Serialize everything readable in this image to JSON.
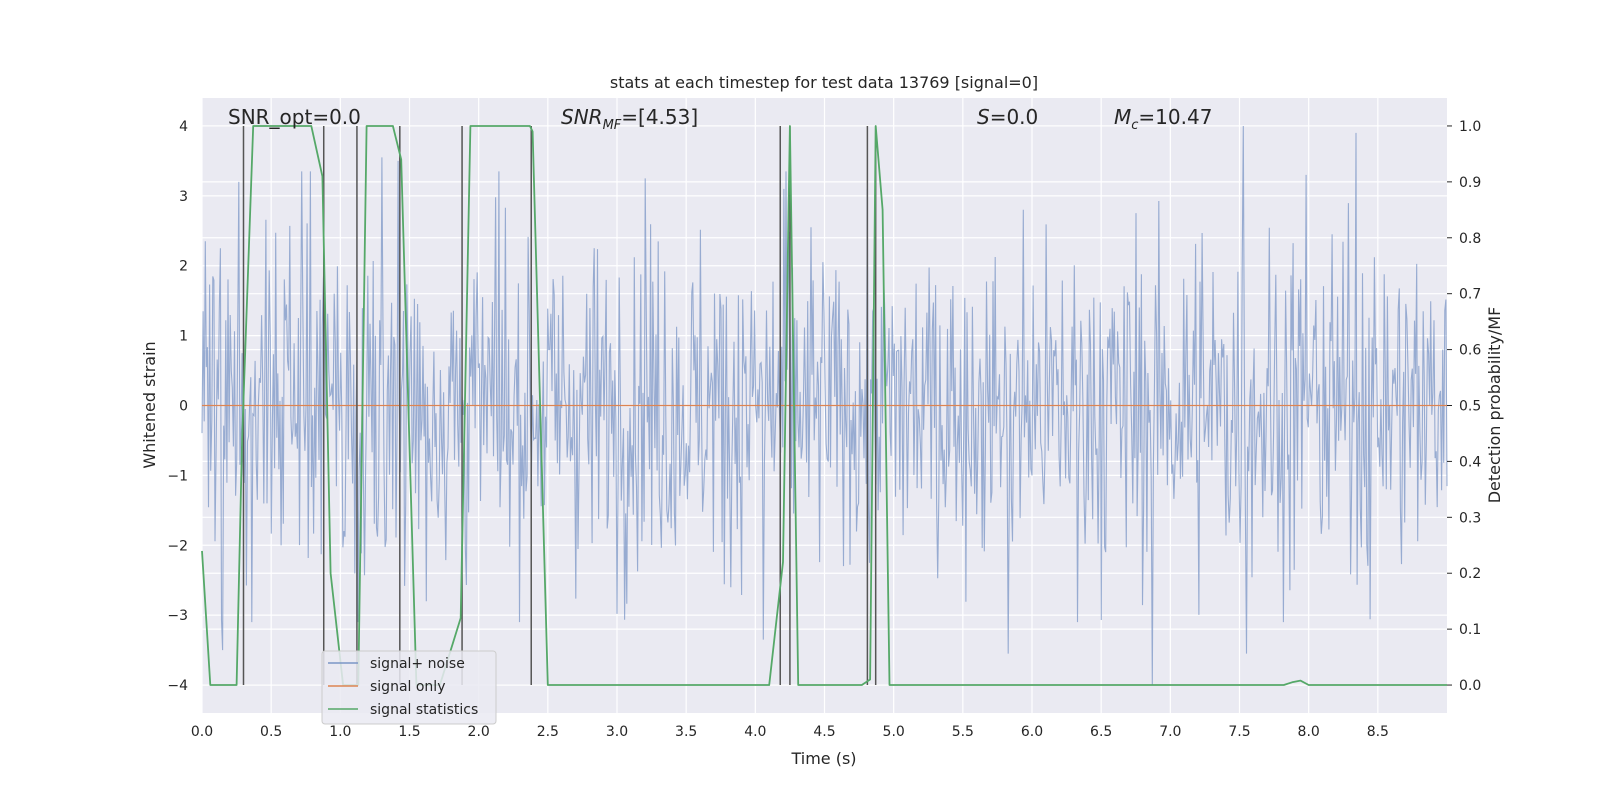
{
  "chart_data": {
    "type": "line",
    "title": "stats at each timestep for test data 13769 [signal=0]",
    "xlabel": "Time (s)",
    "ylabel_left": "Whitened strain",
    "ylabel_right": "Detection probability/MF",
    "xlim": [
      0.0,
      9.0
    ],
    "ylim_left": [
      -4.4,
      4.4
    ],
    "ylim_right": [
      -0.05,
      1.05
    ],
    "xticks": [
      "0.0",
      "0.5",
      "1.0",
      "1.5",
      "2.0",
      "2.5",
      "3.0",
      "3.5",
      "4.0",
      "4.5",
      "5.0",
      "5.5",
      "6.0",
      "6.5",
      "7.0",
      "7.5",
      "8.0",
      "8.5"
    ],
    "yticks_left": [
      "−4",
      "−3",
      "−2",
      "−1",
      "0",
      "1",
      "2",
      "3",
      "4"
    ],
    "yticks_right": [
      "0.0",
      "0.1",
      "0.2",
      "0.3",
      "0.4",
      "0.5",
      "0.6",
      "0.7",
      "0.8",
      "0.9",
      "1.0"
    ],
    "grid": true,
    "annotations": {
      "snr_opt": "SNR_opt=0.0",
      "snr_mf_sym": "SNR",
      "snr_mf_sub": "MF",
      "snr_mf_val": "=[4.53]",
      "s_sym": "S",
      "s_val": "=0.0",
      "mc_sym": "M",
      "mc_sub": "c",
      "mc_val": "=10.47"
    },
    "legend": {
      "position": "lower-left",
      "entries": [
        "signal+ noise",
        "signal only",
        "signal statistics"
      ]
    },
    "series": [
      {
        "name": "signal+ noise",
        "axis": "left",
        "color": "#7b96c6",
        "kind": "noise",
        "seed": 13769,
        "n_points": 1150,
        "sigma": 1.15,
        "spikes": [
          {
            "x": 0.27,
            "y": 3.2
          },
          {
            "x": 0.72,
            "y": 3.35
          },
          {
            "x": 0.78,
            "y": 3.35
          },
          {
            "x": 1.3,
            "y": 3.55
          },
          {
            "x": 1.42,
            "y": 3.5
          },
          {
            "x": 2.15,
            "y": 3.35
          },
          {
            "x": 3.2,
            "y": 3.25
          },
          {
            "x": 4.22,
            "y": 3.35
          },
          {
            "x": 7.53,
            "y": 4.0
          },
          {
            "x": 8.34,
            "y": 3.9
          },
          {
            "x": 7.98,
            "y": 3.3
          },
          {
            "x": 6.87,
            "y": -4.0
          },
          {
            "x": 7.55,
            "y": -3.55
          },
          {
            "x": 5.83,
            "y": -3.55
          },
          {
            "x": 4.06,
            "y": -3.35
          },
          {
            "x": 0.15,
            "y": -3.5
          },
          {
            "x": 6.33,
            "y": -3.1
          },
          {
            "x": 1.62,
            "y": -2.8
          }
        ]
      },
      {
        "name": "signal only",
        "axis": "left",
        "color": "#dd8452",
        "x": [
          0.0,
          9.0
        ],
        "values": [
          0.0,
          0.0
        ]
      },
      {
        "name": "signal statistics",
        "axis": "right",
        "color": "#55a868",
        "x": [
          0.0,
          0.06,
          0.25,
          0.29,
          0.37,
          0.42,
          0.79,
          0.87,
          0.93,
          1.02,
          1.13,
          1.19,
          1.38,
          1.44,
          1.55,
          1.72,
          1.87,
          1.94,
          2.37,
          2.39,
          2.5,
          2.56,
          4.1,
          4.2,
          4.25,
          4.31,
          4.35,
          4.77,
          4.83,
          4.87,
          4.92,
          4.97,
          7.82,
          7.88,
          7.94,
          8.0,
          9.0
        ],
        "values": [
          0.24,
          0.0,
          0.0,
          0.44,
          1.0,
          1.0,
          1.0,
          0.91,
          0.2,
          0.0,
          0.0,
          1.0,
          1.0,
          0.94,
          0.0,
          0.0,
          0.12,
          1.0,
          1.0,
          0.99,
          0.0,
          0.0,
          0.0,
          0.22,
          1.0,
          0.0,
          0.0,
          0.0,
          0.01,
          1.0,
          0.85,
          0.0,
          0.0,
          0.005,
          0.008,
          0.0,
          0.0
        ]
      }
    ],
    "vlines": {
      "color": "#555555",
      "ymin": -4.0,
      "ymax": 4.0,
      "x": [
        0.3,
        0.88,
        1.12,
        1.43,
        1.88,
        2.38,
        4.18,
        4.25,
        4.81,
        4.87
      ]
    }
  }
}
